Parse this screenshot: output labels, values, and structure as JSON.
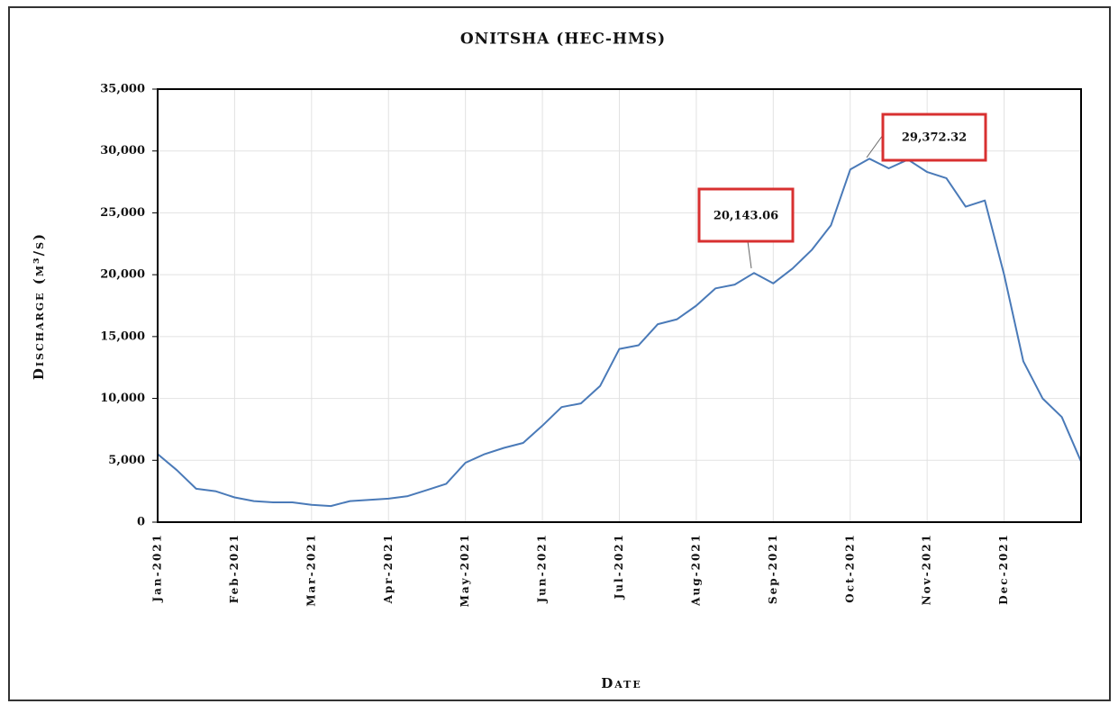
{
  "chart_data": {
    "type": "line",
    "title": "ONITSHA (HEC-HMS)",
    "y_label": "Discharge (m³/s)",
    "x_label": "Date",
    "categories": [
      "Jan-2021",
      null,
      null,
      null,
      "Feb-2021",
      null,
      null,
      null,
      "Mar-2021",
      null,
      null,
      null,
      "Apr-2021",
      null,
      null,
      null,
      "May-2021",
      null,
      null,
      null,
      "Jun-2021",
      null,
      null,
      null,
      "Jul-2021",
      null,
      null,
      null,
      "Aug-2021",
      null,
      null,
      null,
      "Sep-2021",
      null,
      null,
      null,
      "Oct-2021",
      null,
      null,
      null,
      "Nov-2021",
      null,
      null,
      null,
      "Dec-2021",
      null,
      null,
      null,
      null
    ],
    "values": [
      5500,
      4200,
      2700,
      2500,
      2000,
      1700,
      1600,
      1600,
      1400,
      1300,
      1700,
      1800,
      1900,
      2100,
      2600,
      3100,
      4800,
      5500,
      6000,
      6400,
      7800,
      9300,
      9600,
      11000,
      14000,
      14300,
      16000,
      16400,
      17500,
      18900,
      19200,
      20143.06,
      19300,
      20500,
      22000,
      24000,
      28500,
      29372.32,
      28600,
      29300,
      28300,
      27800,
      25500,
      26000,
      20000,
      13000,
      10000,
      8500,
      4900
    ],
    "color": "#4a7ab8",
    "ylim": [
      0,
      35000
    ],
    "yticks": [
      0,
      {
        "value": 5000,
        "label": "5,000"
      },
      {
        "value": 10000,
        "label": "10,000"
      },
      {
        "value": 15000,
        "label": "15,000"
      },
      {
        "value": 20000,
        "label": "20,000"
      },
      {
        "value": 25000,
        "label": "25,000"
      },
      {
        "value": 30000,
        "label": "30,000"
      },
      {
        "value": 35000,
        "label": "35,000"
      }
    ],
    "grid": true,
    "annotations": [
      "20,143.06",
      "29,372.32"
    ]
  }
}
